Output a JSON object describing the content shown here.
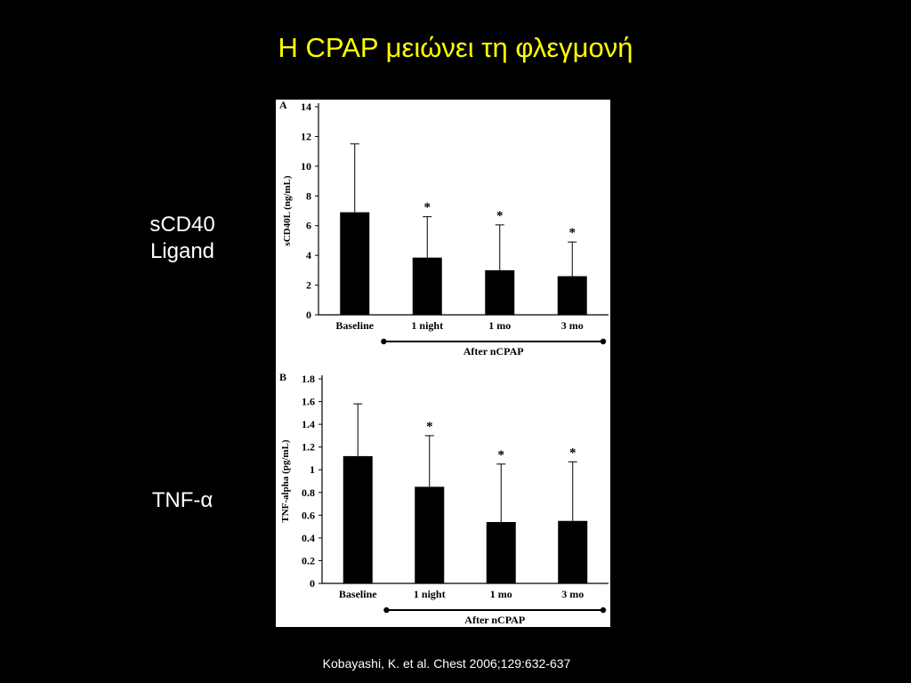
{
  "slide": {
    "title": "Η CPAP μειώνει τη φλεγμονή",
    "label_a_line1": "sCD40",
    "label_a_line2": "Ligand",
    "label_b": "TNF-α",
    "citation": "Kobayashi, K. et al. Chest 2006;129:632-637"
  },
  "colors": {
    "title": "#ffff00",
    "background": "#000000",
    "text": "#ffffff",
    "bars": "#000000",
    "panel": "#ffffff"
  },
  "chart_data": [
    {
      "type": "bar",
      "panel_label": "A",
      "categories": [
        "Baseline",
        "1 night",
        "1 mo",
        "3 mo"
      ],
      "values": [
        6.9,
        3.85,
        3.0,
        2.6
      ],
      "error_upper": [
        4.6,
        2.75,
        3.05,
        2.3
      ],
      "significance": [
        "",
        "*",
        "*",
        "*"
      ],
      "ylabel": "sCD40L (ng/mL)",
      "ylim": [
        0,
        14
      ],
      "yticks": [
        0,
        2,
        4,
        6,
        8,
        10,
        12,
        14
      ],
      "ytick_labels": [
        "0",
        "2",
        "4",
        "6",
        "8",
        "10",
        "12",
        "14"
      ],
      "group_label": "After nCPAP"
    },
    {
      "type": "bar",
      "panel_label": "B",
      "categories": [
        "Baseline",
        "1 night",
        "1 mo",
        "3 mo"
      ],
      "values": [
        1.12,
        0.85,
        0.54,
        0.55
      ],
      "error_upper": [
        0.46,
        0.45,
        0.51,
        0.52
      ],
      "significance": [
        "",
        "*",
        "*",
        "*"
      ],
      "ylabel": "TNF-alpha (pg/mL)",
      "ylim": [
        0,
        1.8
      ],
      "yticks": [
        0,
        0.2,
        0.4,
        0.6,
        0.8,
        1.0,
        1.2,
        1.4,
        1.6,
        1.8
      ],
      "ytick_labels": [
        "0",
        "0.2",
        "0.4",
        "0.6",
        "0.8",
        "1",
        "1.2",
        "1.4",
        "1.6",
        "1.8"
      ],
      "group_label": "After nCPAP"
    }
  ]
}
